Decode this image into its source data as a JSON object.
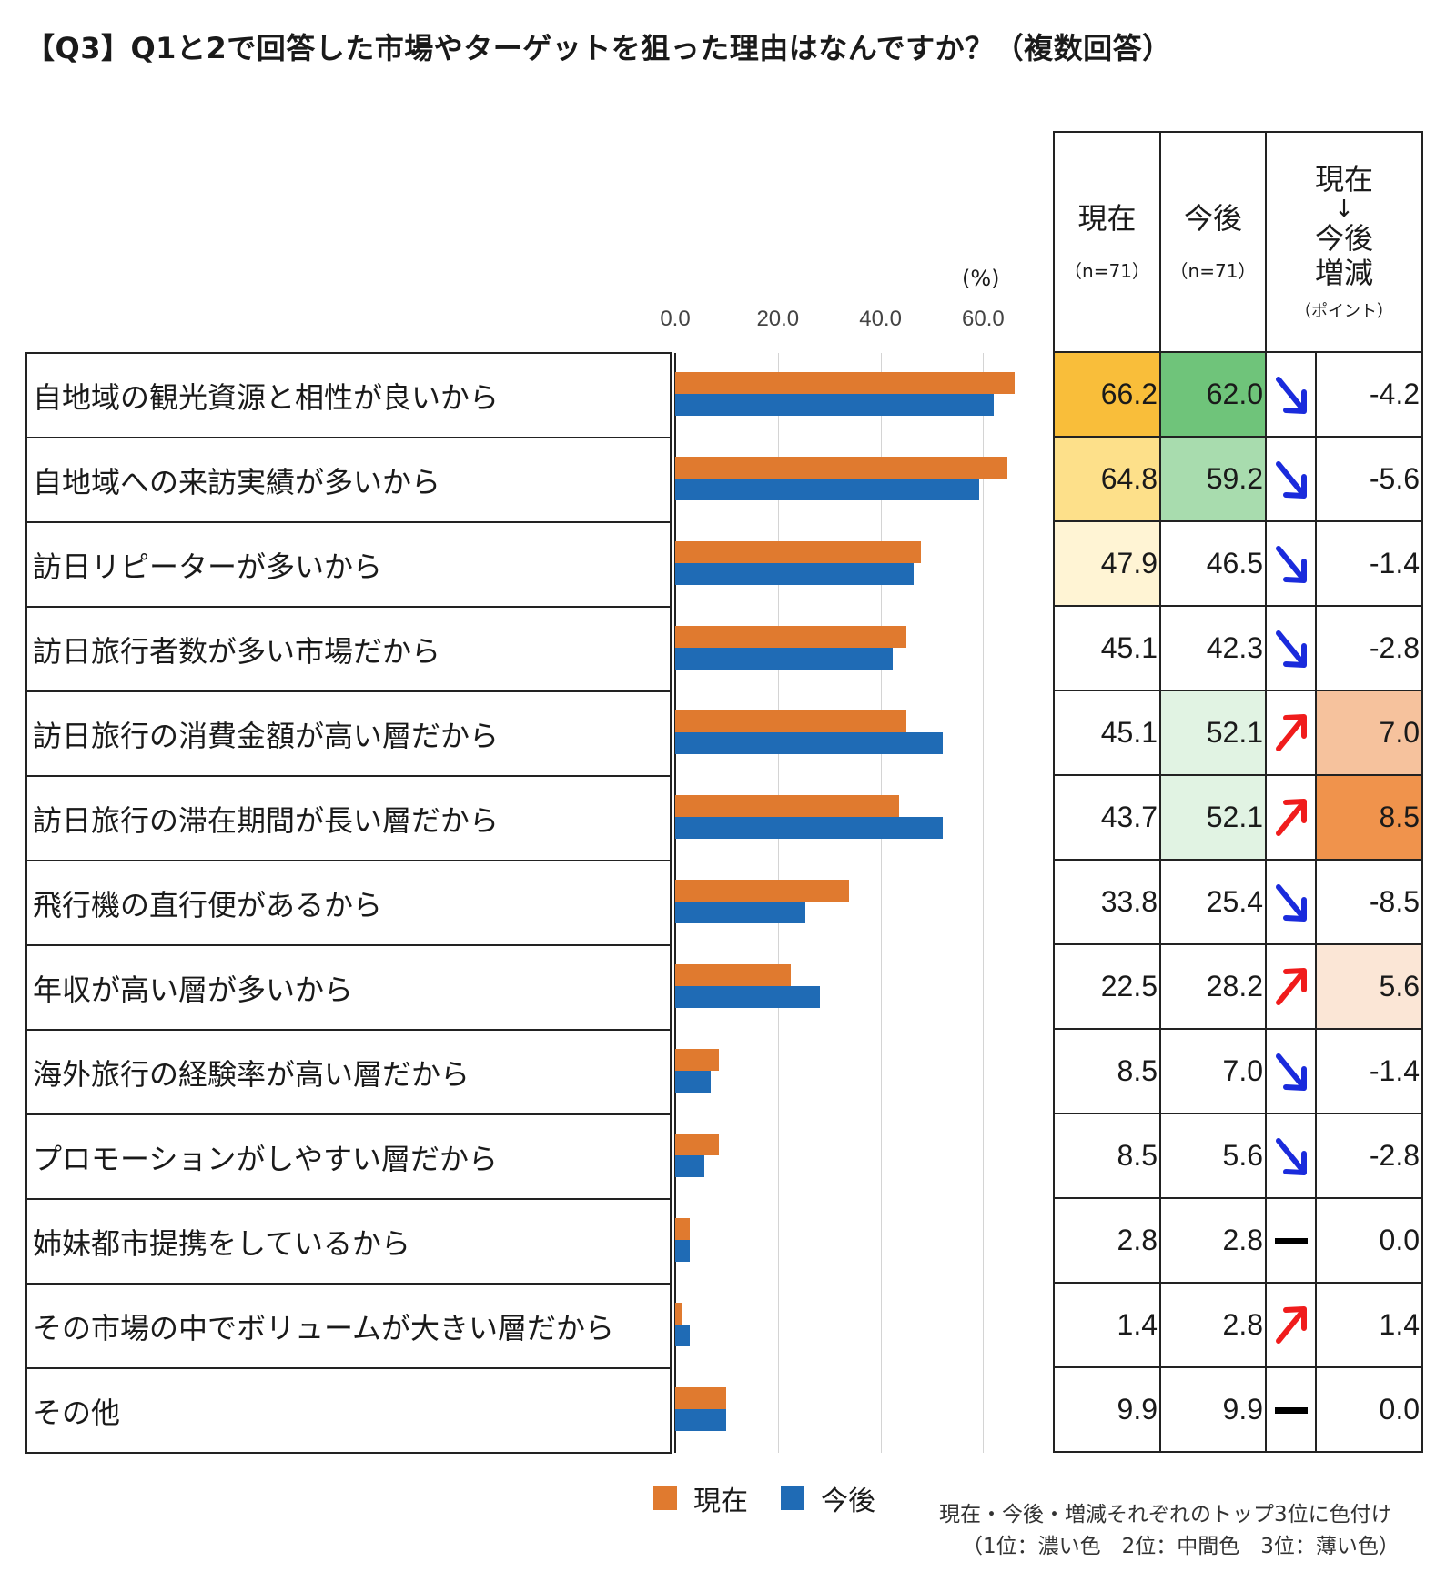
{
  "title": "【Q3】Q1と2で回答した市場やターゲットを狙った理由はなんですか？（複数回答）",
  "unit": "(%)",
  "legend": {
    "current": "現在",
    "future": "今後"
  },
  "colors": {
    "current": "#e07a2f",
    "future": "#1f6bb5",
    "current_top1": "#f9be3a",
    "current_top2": "#fde08a",
    "current_top3": "#fff4d4",
    "future_top1": "#6fc47a",
    "future_top2": "#a8dcae",
    "future_top3": "#e1f3e3",
    "change_top1": "#f0934c",
    "change_top2": "#f6c29d",
    "change_top3": "#fbe6d6",
    "arrow_down": "#1a2bdc",
    "arrow_up": "#f01c1c",
    "flat": "#000000"
  },
  "table": {
    "col_current": "現在",
    "col_current_n": "（n=71）",
    "col_future": "今後",
    "col_future_n": "（n=71）",
    "col_change_1": "現在",
    "col_change_arrow": "↓",
    "col_change_2": "今後",
    "col_change_3": "増減",
    "col_change_unit": "（ポイント）"
  },
  "notes": {
    "line1": "現在・今後・増減それぞれのトップ3位に色付け",
    "line2": "（1位：濃い色　2位：中間色　3位：薄い色）"
  },
  "chart_data": {
    "type": "bar",
    "orientation": "horizontal",
    "xlim": [
      0,
      66
    ],
    "ticks": [
      "0.0",
      "20.0",
      "40.0",
      "60.0"
    ],
    "tick_values": [
      0,
      20,
      40,
      60
    ],
    "categories": [
      "自地域の観光資源と相性が良いから",
      "自地域への来訪実績が多いから",
      "訪日リピーターが多いから",
      "訪日旅行者数が多い市場だから",
      "訪日旅行の消費金額が高い層だから",
      "訪日旅行の滞在期間が長い層だから",
      "飛行機の直行便があるから",
      "年収が高い層が多いから",
      "海外旅行の経験率が高い層だから",
      "プロモーションがしやすい層だから",
      "姉妹都市提携をしているから",
      "その市場の中でボリュームが大きい層だから",
      "その他"
    ],
    "series": [
      {
        "name": "現在",
        "values": [
          66.2,
          64.8,
          47.9,
          45.1,
          45.1,
          43.7,
          33.8,
          22.5,
          8.5,
          8.5,
          2.8,
          1.4,
          9.9
        ],
        "labels": [
          "66.2",
          "64.8",
          "47.9",
          "45.1",
          "45.1",
          "43.7",
          "33.8",
          "22.5",
          "8.5",
          "8.5",
          "2.8",
          "1.4",
          "9.9"
        ]
      },
      {
        "name": "今後",
        "values": [
          62.0,
          59.2,
          46.5,
          42.3,
          52.1,
          52.1,
          25.4,
          28.2,
          7.0,
          5.6,
          2.8,
          2.8,
          9.9
        ],
        "labels": [
          "62.0",
          "59.2",
          "46.5",
          "42.3",
          "52.1",
          "52.1",
          "25.4",
          "28.2",
          "7.0",
          "5.6",
          "2.8",
          "2.8",
          "9.9"
        ]
      }
    ],
    "change": [
      -4.2,
      -5.6,
      -1.4,
      -2.8,
      7.0,
      8.5,
      -8.5,
      5.6,
      -1.4,
      -2.8,
      0.0,
      1.4,
      0.0
    ],
    "change_labels": [
      "-4.2",
      "-5.6",
      "-1.4",
      "-2.8",
      "7.0",
      "8.5",
      "-8.5",
      "5.6",
      "-1.4",
      "-2.8",
      "0.0",
      "1.4",
      "0.0"
    ],
    "trend": [
      "down",
      "down",
      "down",
      "down",
      "up",
      "up",
      "down",
      "up",
      "down",
      "down",
      "flat",
      "up",
      "flat"
    ],
    "highlight_current": [
      1,
      2,
      3,
      0,
      0,
      0,
      0,
      0,
      0,
      0,
      0,
      0,
      0
    ],
    "highlight_future": [
      1,
      2,
      0,
      0,
      3,
      3,
      0,
      0,
      0,
      0,
      0,
      0,
      0
    ],
    "highlight_change": [
      0,
      0,
      0,
      0,
      2,
      1,
      0,
      3,
      0,
      0,
      0,
      0,
      0
    ]
  }
}
